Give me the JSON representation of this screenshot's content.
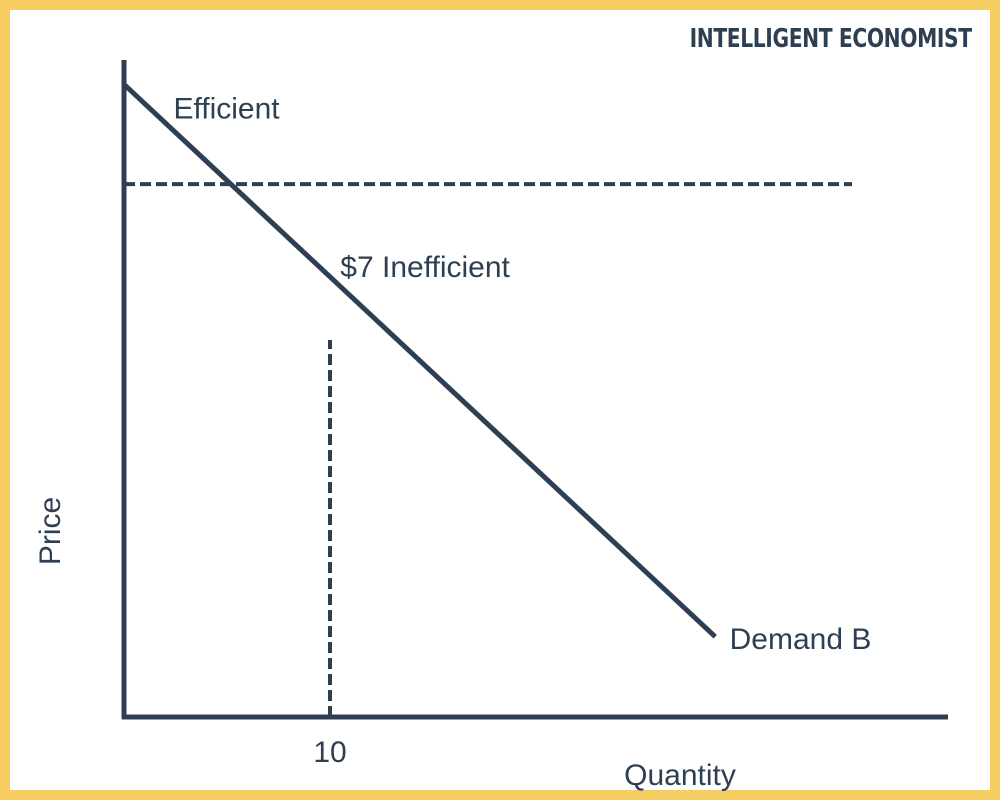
{
  "brand": "INTELLIGENT ECONOMIST",
  "colors": {
    "line": "#2e3f52",
    "border": "#f5cd63",
    "background": "#ffffff"
  },
  "chart_data": {
    "type": "line",
    "xlabel": "Quantity",
    "ylabel": "Price",
    "xlim": [
      0,
      40
    ],
    "ylim": [
      0,
      27
    ],
    "grid": false,
    "series": [
      {
        "name": "Demand B",
        "x": [
          0,
          28.7
        ],
        "y": [
          26,
          3.3
        ]
      }
    ],
    "reference_lines": [
      {
        "orientation": "horizontal",
        "y": 21.9,
        "style": "dashed"
      },
      {
        "orientation": "vertical",
        "x": 10,
        "style": "dashed"
      }
    ],
    "x_ticks": [
      "10"
    ],
    "annotations": [
      {
        "text": "Efficient",
        "x": 2.4,
        "y": 25
      },
      {
        "text": "$7 Inefficient",
        "x": 10.5,
        "y": 18.5
      },
      {
        "text": "Demand B",
        "x": 29.4,
        "y": 3.2
      }
    ]
  }
}
